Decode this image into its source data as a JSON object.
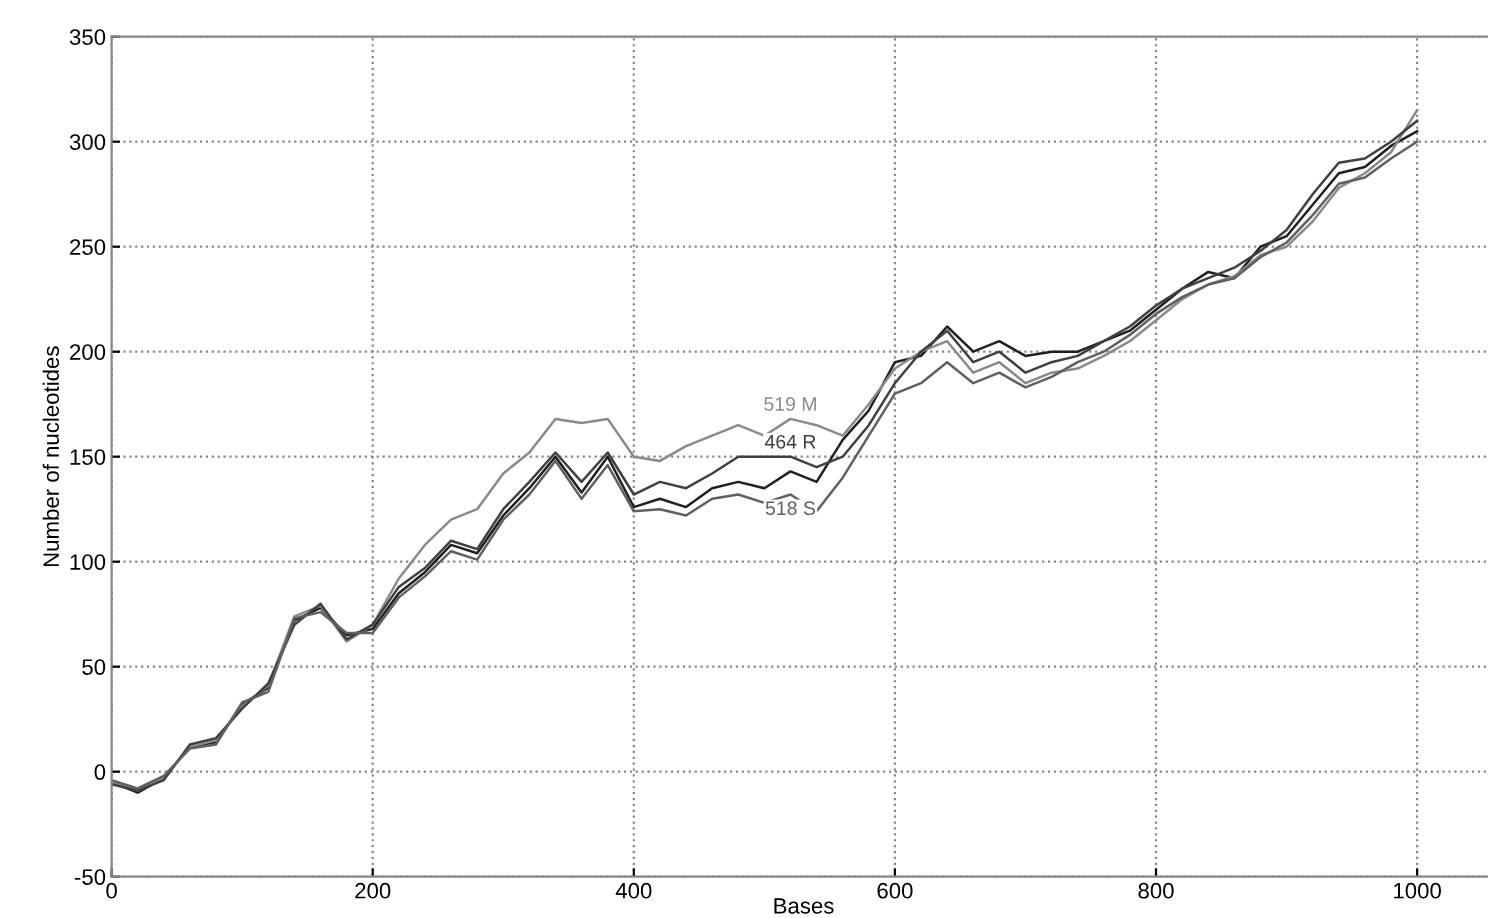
{
  "chart_data": {
    "type": "line",
    "xlabel": "Bases",
    "ylabel": "Number of nucleotides",
    "x": [
      0,
      20,
      40,
      60,
      80,
      100,
      120,
      140,
      160,
      180,
      200,
      220,
      240,
      260,
      280,
      300,
      320,
      340,
      360,
      380,
      400,
      420,
      440,
      460,
      480,
      500,
      520,
      540,
      560,
      580,
      600,
      620,
      640,
      660,
      680,
      700,
      720,
      740,
      760,
      780,
      800,
      820,
      840,
      860,
      880,
      900,
      920,
      940,
      960,
      980,
      1000
    ],
    "series": [
      {
        "color": "#202020",
        "values": [
          -5,
          -10,
          -3,
          12,
          14,
          32,
          40,
          72,
          78,
          65,
          68,
          85,
          95,
          108,
          104,
          122,
          135,
          150,
          133,
          150,
          126,
          130,
          126,
          135,
          138,
          135,
          143,
          138,
          158,
          172,
          195,
          198,
          212,
          200,
          205,
          198,
          200,
          200,
          205,
          210,
          220,
          230,
          238,
          235,
          250,
          255,
          270,
          285,
          288,
          298,
          305
        ]
      },
      {
        "name": "519 M",
        "color": "#8a8a8a",
        "values": [
          -5,
          -9,
          -3,
          12,
          15,
          31,
          41,
          74,
          79,
          62,
          70,
          92,
          108,
          120,
          125,
          142,
          152,
          168,
          166,
          168,
          150,
          148,
          155,
          160,
          165,
          160,
          168,
          165,
          160,
          175,
          192,
          200,
          205,
          190,
          195,
          185,
          190,
          192,
          198,
          205,
          215,
          225,
          232,
          236,
          246,
          250,
          262,
          278,
          285,
          295,
          315
        ]
      },
      {
        "name": "464 R",
        "color": "#404040",
        "values": [
          -6,
          -9,
          -4,
          13,
          16,
          30,
          42,
          70,
          80,
          63,
          70,
          88,
          97,
          110,
          106,
          125,
          138,
          152,
          138,
          152,
          132,
          138,
          135,
          142,
          150,
          150,
          150,
          145,
          150,
          165,
          185,
          200,
          210,
          195,
          200,
          190,
          195,
          198,
          205,
          212,
          222,
          230,
          235,
          240,
          248,
          258,
          275,
          290,
          292,
          300,
          310
        ]
      },
      {
        "name": "518 S",
        "color": "#606060",
        "values": [
          -4,
          -8,
          -2,
          11,
          13,
          33,
          38,
          73,
          76,
          66,
          66,
          83,
          93,
          105,
          101,
          120,
          132,
          148,
          130,
          146,
          124,
          125,
          122,
          130,
          132,
          128,
          132,
          124,
          140,
          160,
          180,
          185,
          195,
          185,
          190,
          183,
          188,
          195,
          200,
          208,
          218,
          226,
          232,
          235,
          245,
          252,
          265,
          280,
          283,
          292,
          300
        ]
      }
    ],
    "xlim": [
      0,
      1060
    ],
    "xticks": [
      0,
      200,
      400,
      600,
      800,
      1000
    ],
    "ylim": [
      -50,
      350
    ],
    "yticks": [
      -50,
      0,
      50,
      100,
      150,
      200,
      250,
      300,
      350
    ],
    "grid": true,
    "legend": false,
    "marker": "none",
    "line_style": "solid"
  }
}
